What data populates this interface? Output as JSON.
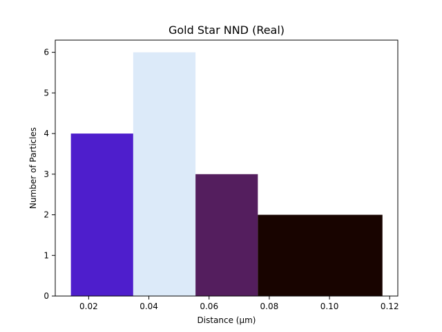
{
  "chart_data": {
    "type": "bar",
    "title": "Gold Star NND (Real)",
    "xlabel": "Distance (µm)",
    "ylabel": "Number of Particles",
    "xlim": [
      0.0089,
      0.1227
    ],
    "ylim": [
      0,
      6.3
    ],
    "xticks": [
      0.02,
      0.04,
      0.06,
      0.08,
      0.1,
      0.12
    ],
    "xtick_labels": [
      "0.02",
      "0.04",
      "0.06",
      "0.08",
      "0.10",
      "0.12"
    ],
    "yticks": [
      0,
      1,
      2,
      3,
      4,
      5,
      6
    ],
    "ytick_labels": [
      "0",
      "1",
      "2",
      "3",
      "4",
      "5",
      "6"
    ],
    "grid": false,
    "bars": [
      {
        "x0": 0.0141,
        "x1": 0.0348,
        "value": 4,
        "color": "#4e1ecc"
      },
      {
        "x0": 0.0348,
        "x1": 0.0555,
        "value": 6,
        "color": "#dceaf9"
      },
      {
        "x0": 0.0555,
        "x1": 0.0762,
        "value": 3,
        "color": "#541e5e"
      },
      {
        "x0": 0.0762,
        "x1": 0.1176,
        "value": 2,
        "color": "#180400"
      }
    ]
  }
}
